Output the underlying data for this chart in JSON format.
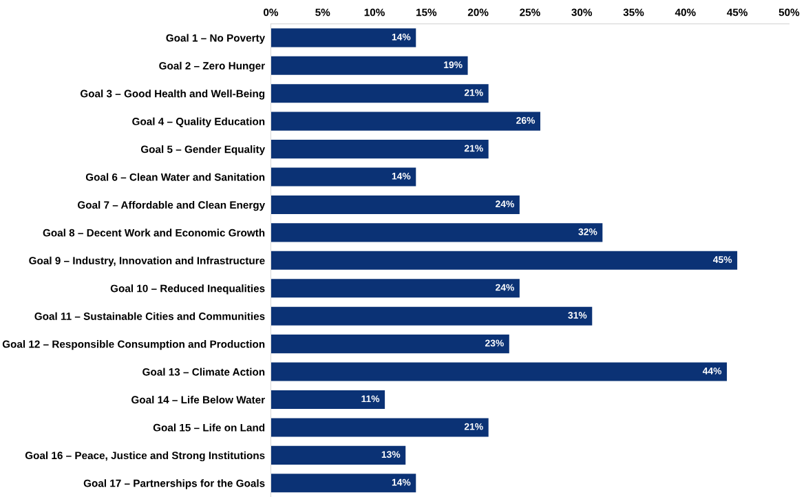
{
  "chart_data": {
    "type": "bar",
    "orientation": "horizontal",
    "categories": [
      "Goal 1 – No Poverty",
      "Goal 2 – Zero Hunger",
      "Goal 3 – Good Health and Well-Being",
      "Goal 4 – Quality Education",
      "Goal 5 – Gender Equality",
      "Goal 6 – Clean Water and Sanitation",
      "Goal 7 – Affordable and Clean Energy",
      "Goal 8 – Decent Work and Economic Growth",
      "Goal 9 – Industry, Innovation and Infrastructure",
      "Goal 10 – Reduced Inequalities",
      "Goal 11 – Sustainable Cities and Communities",
      "Goal 12 – Responsible Consumption and Production",
      "Goal 13 – Climate Action",
      "Goal 14 – Life Below Water",
      "Goal 15 – Life on Land",
      "Goal 16 – Peace, Justice and Strong Institutions",
      "Goal 17 – Partnerships for the Goals"
    ],
    "values": [
      14,
      19,
      21,
      26,
      21,
      14,
      24,
      32,
      45,
      24,
      31,
      23,
      44,
      11,
      21,
      13,
      14
    ],
    "value_labels": [
      "14%",
      "19%",
      "21%",
      "26%",
      "21%",
      "14%",
      "24%",
      "32%",
      "45%",
      "24%",
      "31%",
      "23%",
      "44%",
      "11%",
      "21%",
      "13%",
      "14%"
    ],
    "color": "#0b3275",
    "xlim": [
      0,
      50
    ],
    "xticks": [
      {
        "value": 0,
        "label": "0%"
      },
      {
        "value": 5,
        "label": "5%"
      },
      {
        "value": 10,
        "label": "10%"
      },
      {
        "value": 15,
        "label": "15%"
      },
      {
        "value": 20,
        "label": "20%"
      },
      {
        "value": 25,
        "label": "25%"
      },
      {
        "value": 30,
        "label": "30%"
      },
      {
        "value": 35,
        "label": "35%"
      },
      {
        "value": 40,
        "label": "40%"
      },
      {
        "value": 45,
        "label": "45%"
      },
      {
        "value": 50,
        "label": "50%"
      }
    ],
    "grid": false,
    "legend": false
  }
}
